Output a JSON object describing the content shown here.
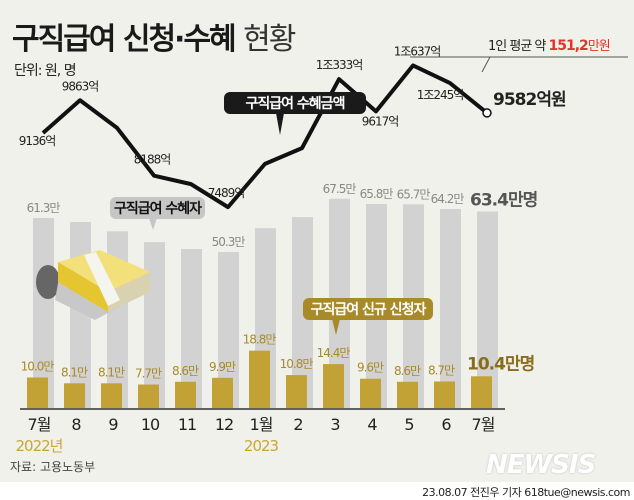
{
  "title_bold": "구직급여 신청·수혜",
  "title_light": "현황",
  "unit": "단위: 원, 명",
  "average": {
    "prefix": "1인 평균 약 ",
    "value": "151,2",
    "suffix": "만원"
  },
  "source": "자료: 고용노동부",
  "credit": "23.08.07 전진우 기자 618tue@newsis.com",
  "logo": "NEWSIS",
  "callouts": {
    "amount": "구직급여 수혜금액",
    "recipients": "구직급여 수혜자",
    "applicants": "구직급여 신규 신청자"
  },
  "colors": {
    "background": "#f1f1ec",
    "recipients_bar": "#d2d2d2",
    "applicants_bar": "#c3a235",
    "line": "#111111",
    "highlight": "#e0352b",
    "label_gold": "#a98a2a"
  },
  "chart_data": {
    "type": "bar+line",
    "categories": [
      "7월",
      "8",
      "9",
      "10",
      "11",
      "12",
      "1월",
      "2",
      "3",
      "4",
      "5",
      "6",
      "7월"
    ],
    "year_labels": [
      {
        "index": 0,
        "text": "2022년"
      },
      {
        "index": 6,
        "text": "2023"
      }
    ],
    "series": [
      {
        "name": "구직급여 수혜금액",
        "type": "line",
        "unit": "억원",
        "values": [
          9136,
          9863,
          9250,
          8188,
          8000,
          7489,
          8450,
          8800,
          10333,
          9617,
          10637,
          10245,
          9582
        ],
        "labels": [
          "9136억",
          "9863억",
          null,
          "8188억",
          null,
          "7489억",
          null,
          null,
          "1조333억",
          "9617억",
          "1조637억",
          "1조245억",
          "9582억원"
        ]
      },
      {
        "name": "구직급여 수혜자",
        "type": "bar",
        "unit": "만명",
        "values": [
          61.3,
          60.0,
          57.0,
          53.5,
          51.3,
          50.3,
          58.0,
          61.6,
          67.5,
          65.8,
          65.7,
          64.2,
          63.4
        ],
        "labels": [
          "61.3만",
          null,
          null,
          null,
          null,
          "50.3만",
          null,
          null,
          "67.5만",
          "65.8만",
          "65.7만",
          "64.2만",
          "63.4만명"
        ]
      },
      {
        "name": "구직급여 신규 신청자",
        "type": "bar",
        "unit": "만명",
        "values": [
          10.0,
          8.1,
          8.1,
          7.7,
          8.6,
          9.9,
          18.8,
          10.8,
          14.4,
          9.6,
          8.6,
          8.7,
          10.4
        ],
        "labels": [
          "10.0만",
          "8.1만",
          "8.1만",
          "7.7만",
          "8.6만",
          "9.9만",
          "18.8만",
          "10.8만",
          "14.4만",
          "9.6만",
          "8.6만",
          "8.7만",
          "10.4만명"
        ]
      }
    ]
  }
}
